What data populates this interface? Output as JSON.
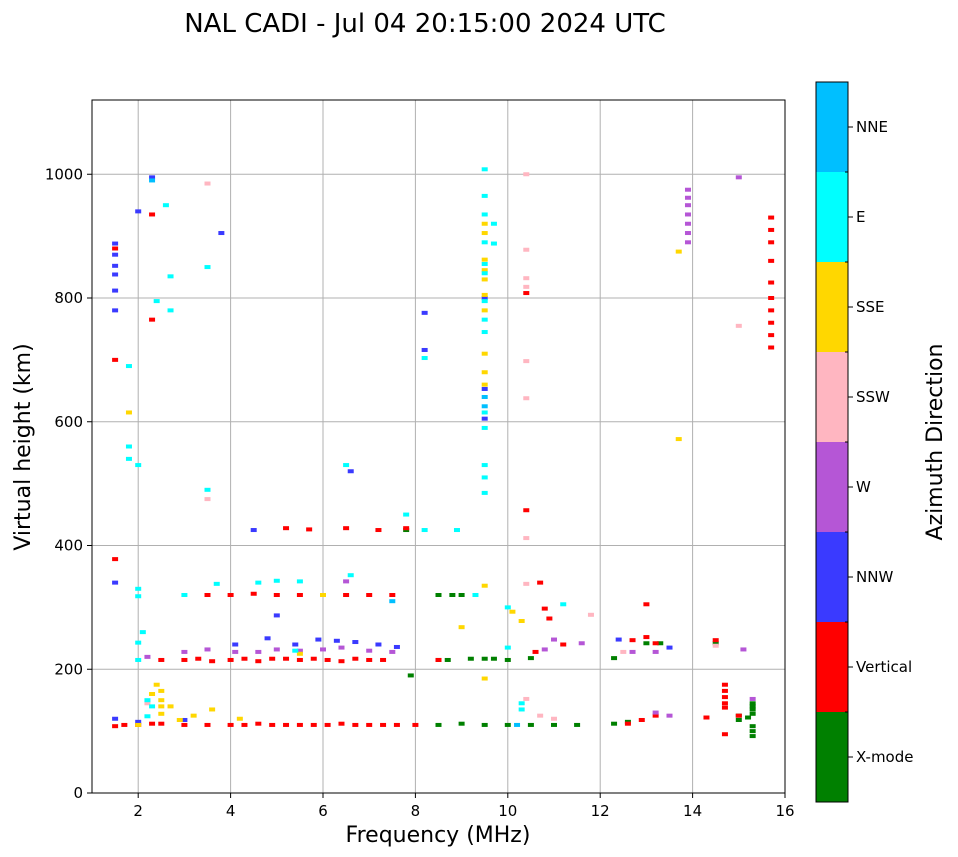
{
  "chart_data": {
    "type": "scatter",
    "title": "NAL CADI - Jul 04 20:15:00 2024 UTC",
    "xlabel": "Frequency (MHz)",
    "ylabel": "Virtual height (km)",
    "xlim": [
      1.0,
      16.0
    ],
    "ylim": [
      0,
      1120
    ],
    "xticks": [
      2,
      4,
      6,
      8,
      10,
      12,
      14,
      16
    ],
    "yticks": [
      0,
      200,
      400,
      600,
      800,
      1000
    ],
    "grid": true,
    "colorbar": {
      "label": "Azimuth Direction",
      "categories": [
        {
          "name": "X-mode",
          "color": "#008000"
        },
        {
          "name": "Vertical",
          "color": "#ff0000"
        },
        {
          "name": "NNW",
          "color": "#3a3aff"
        },
        {
          "name": "W",
          "color": "#b556d6"
        },
        {
          "name": "SSW",
          "color": "#ffb6c1"
        },
        {
          "name": "SSE",
          "color": "#ffd700"
        },
        {
          "name": "E",
          "color": "#00ffff"
        },
        {
          "name": "NNE",
          "color": "#00bfff"
        }
      ]
    },
    "series": [
      {
        "name": "X-mode",
        "color": "#008000",
        "points": [
          [
            8.5,
            110
          ],
          [
            9.0,
            112
          ],
          [
            9.5,
            110
          ],
          [
            10.0,
            110
          ],
          [
            10.5,
            110
          ],
          [
            11.0,
            110
          ],
          [
            11.5,
            110
          ],
          [
            12.3,
            112
          ],
          [
            12.6,
            115
          ],
          [
            15.2,
            122
          ],
          [
            15.3,
            128
          ],
          [
            15.3,
            135
          ],
          [
            15.3,
            140
          ],
          [
            15.3,
            145
          ],
          [
            15.3,
            108
          ],
          [
            15.3,
            100
          ],
          [
            15.3,
            92
          ],
          [
            8.5,
            215
          ],
          [
            8.7,
            215
          ],
          [
            9.2,
            217
          ],
          [
            9.5,
            217
          ],
          [
            9.7,
            217
          ],
          [
            10.0,
            215
          ],
          [
            10.5,
            218
          ],
          [
            12.3,
            218
          ],
          [
            13.0,
            242
          ],
          [
            13.3,
            242
          ],
          [
            14.5,
            242
          ],
          [
            8.5,
            320
          ],
          [
            8.8,
            320
          ],
          [
            9.0,
            320
          ],
          [
            7.8,
            425
          ],
          [
            7.9,
            190
          ],
          [
            15.0,
            125
          ],
          [
            15.0,
            118
          ]
        ]
      },
      {
        "name": "Vertical",
        "color": "#ff0000",
        "points": [
          [
            1.5,
            108
          ],
          [
            1.7,
            110
          ],
          [
            2.0,
            110
          ],
          [
            2.3,
            112
          ],
          [
            2.5,
            112
          ],
          [
            3.0,
            110
          ],
          [
            3.5,
            110
          ],
          [
            4.0,
            110
          ],
          [
            4.3,
            110
          ],
          [
            4.6,
            112
          ],
          [
            4.9,
            110
          ],
          [
            5.2,
            110
          ],
          [
            5.5,
            110
          ],
          [
            5.8,
            110
          ],
          [
            6.1,
            110
          ],
          [
            6.4,
            112
          ],
          [
            6.7,
            110
          ],
          [
            7.0,
            110
          ],
          [
            7.3,
            110
          ],
          [
            7.6,
            110
          ],
          [
            8.0,
            110
          ],
          [
            12.6,
            112
          ],
          [
            12.9,
            118
          ],
          [
            13.2,
            125
          ],
          [
            14.3,
            122
          ],
          [
            14.7,
            175
          ],
          [
            14.7,
            165
          ],
          [
            14.7,
            155
          ],
          [
            14.7,
            145
          ],
          [
            14.7,
            138
          ],
          [
            14.7,
            95
          ],
          [
            15.0,
            125
          ],
          [
            2.5,
            215
          ],
          [
            3.0,
            215
          ],
          [
            3.3,
            217
          ],
          [
            3.6,
            213
          ],
          [
            4.0,
            215
          ],
          [
            4.3,
            217
          ],
          [
            4.6,
            213
          ],
          [
            4.9,
            217
          ],
          [
            5.2,
            217
          ],
          [
            5.5,
            215
          ],
          [
            5.8,
            217
          ],
          [
            6.1,
            215
          ],
          [
            6.4,
            213
          ],
          [
            6.7,
            217
          ],
          [
            7.0,
            215
          ],
          [
            7.3,
            215
          ],
          [
            8.5,
            215
          ],
          [
            12.7,
            247
          ],
          [
            13.0,
            252
          ],
          [
            13.2,
            242
          ],
          [
            14.5,
            247
          ],
          [
            11.2,
            240
          ],
          [
            3.5,
            320
          ],
          [
            4.0,
            320
          ],
          [
            4.5,
            322
          ],
          [
            5.0,
            320
          ],
          [
            5.5,
            320
          ],
          [
            6.0,
            320
          ],
          [
            6.5,
            320
          ],
          [
            7.0,
            320
          ],
          [
            7.5,
            320
          ],
          [
            5.2,
            428
          ],
          [
            5.7,
            426
          ],
          [
            6.5,
            428
          ],
          [
            7.2,
            425
          ],
          [
            7.8,
            428
          ],
          [
            10.4,
            457
          ],
          [
            10.7,
            340
          ],
          [
            10.9,
            282
          ],
          [
            13.0,
            305
          ],
          [
            10.6,
            228
          ],
          [
            10.8,
            298
          ],
          [
            2.3,
            935
          ],
          [
            2.3,
            765
          ],
          [
            10.4,
            808
          ],
          [
            1.5,
            378
          ],
          [
            1.5,
            700
          ],
          [
            15.7,
            860
          ],
          [
            15.7,
            825
          ],
          [
            15.7,
            800
          ],
          [
            15.7,
            780
          ],
          [
            15.7,
            760
          ],
          [
            15.7,
            740
          ],
          [
            15.7,
            720
          ],
          [
            15.7,
            890
          ],
          [
            15.7,
            910
          ],
          [
            15.7,
            930
          ],
          [
            1.5,
            880
          ]
        ]
      },
      {
        "name": "NNW",
        "color": "#3a3aff",
        "points": [
          [
            1.5,
            120
          ],
          [
            2.0,
            115
          ],
          [
            3.0,
            118
          ],
          [
            4.1,
            240
          ],
          [
            4.8,
            250
          ],
          [
            5.4,
            240
          ],
          [
            5.9,
            248
          ],
          [
            6.3,
            246
          ],
          [
            6.7,
            244
          ],
          [
            7.2,
            240
          ],
          [
            7.6,
            236
          ],
          [
            1.5,
            888
          ],
          [
            1.5,
            870
          ],
          [
            1.5,
            852
          ],
          [
            1.5,
            838
          ],
          [
            1.5,
            812
          ],
          [
            1.5,
            780
          ],
          [
            1.5,
            340
          ],
          [
            2.0,
            940
          ],
          [
            2.3,
            995
          ],
          [
            3.8,
            905
          ],
          [
            8.2,
            776
          ],
          [
            8.2,
            716
          ],
          [
            9.5,
            653
          ],
          [
            9.5,
            605
          ],
          [
            4.5,
            425
          ],
          [
            6.6,
            520
          ],
          [
            12.4,
            248
          ],
          [
            13.5,
            235
          ],
          [
            5.0,
            287
          ],
          [
            9.5,
            800
          ]
        ]
      },
      {
        "name": "W",
        "color": "#b556d6",
        "points": [
          [
            2.2,
            220
          ],
          [
            3.0,
            228
          ],
          [
            3.5,
            232
          ],
          [
            4.1,
            228
          ],
          [
            4.6,
            228
          ],
          [
            5.0,
            232
          ],
          [
            5.5,
            230
          ],
          [
            6.0,
            232
          ],
          [
            6.4,
            235
          ],
          [
            7.0,
            230
          ],
          [
            7.5,
            228
          ],
          [
            13.5,
            125
          ],
          [
            13.2,
            130
          ],
          [
            12.7,
            228
          ],
          [
            13.2,
            228
          ],
          [
            15.1,
            232
          ],
          [
            15.3,
            152
          ],
          [
            11.0,
            248
          ],
          [
            10.8,
            232
          ],
          [
            11.6,
            242
          ],
          [
            13.9,
            975
          ],
          [
            13.9,
            962
          ],
          [
            13.9,
            950
          ],
          [
            13.9,
            935
          ],
          [
            13.9,
            920
          ],
          [
            13.9,
            905
          ],
          [
            13.9,
            890
          ],
          [
            15.0,
            995
          ],
          [
            6.5,
            342
          ]
        ]
      },
      {
        "name": "SSW",
        "color": "#ffb6c1",
        "points": [
          [
            10.4,
            1000
          ],
          [
            10.4,
            878
          ],
          [
            10.4,
            832
          ],
          [
            10.4,
            818
          ],
          [
            10.4,
            698
          ],
          [
            10.4,
            638
          ],
          [
            10.4,
            412
          ],
          [
            10.4,
            338
          ],
          [
            3.5,
            985
          ],
          [
            15.0,
            755
          ],
          [
            11.8,
            288
          ],
          [
            12.5,
            228
          ],
          [
            14.5,
            238
          ],
          [
            10.4,
            152
          ],
          [
            10.7,
            125
          ],
          [
            11.0,
            120
          ],
          [
            3.5,
            475
          ],
          [
            2.2,
            145
          ]
        ]
      },
      {
        "name": "SSE",
        "color": "#ffd700",
        "points": [
          [
            1.8,
            615
          ],
          [
            2.0,
            110
          ],
          [
            2.4,
            175
          ],
          [
            2.5,
            165
          ],
          [
            2.5,
            150
          ],
          [
            2.5,
            140
          ],
          [
            2.5,
            128
          ],
          [
            2.3,
            160
          ],
          [
            2.7,
            140
          ],
          [
            2.9,
            118
          ],
          [
            3.2,
            125
          ],
          [
            3.6,
            135
          ],
          [
            4.2,
            120
          ],
          [
            9.5,
            920
          ],
          [
            9.5,
            905
          ],
          [
            9.5,
            862
          ],
          [
            9.5,
            845
          ],
          [
            9.5,
            830
          ],
          [
            9.5,
            805
          ],
          [
            9.5,
            780
          ],
          [
            9.5,
            710
          ],
          [
            9.5,
            680
          ],
          [
            9.5,
            660
          ],
          [
            9.5,
            335
          ],
          [
            9.5,
            185
          ],
          [
            10.1,
            293
          ],
          [
            10.3,
            278
          ],
          [
            13.7,
            875
          ],
          [
            13.7,
            572
          ],
          [
            9.0,
            268
          ],
          [
            6.0,
            320
          ],
          [
            5.5,
            225
          ]
        ]
      },
      {
        "name": "E",
        "color": "#00ffff",
        "points": [
          [
            2.0,
            530
          ],
          [
            1.8,
            540
          ],
          [
            1.8,
            560
          ],
          [
            1.8,
            690
          ],
          [
            2.0,
            330
          ],
          [
            2.0,
            318
          ],
          [
            2.1,
            260
          ],
          [
            2.0,
            243
          ],
          [
            2.0,
            215
          ],
          [
            2.2,
            150
          ],
          [
            2.3,
            140
          ],
          [
            3.0,
            320
          ],
          [
            3.5,
            490
          ],
          [
            3.5,
            850
          ],
          [
            2.7,
            835
          ],
          [
            2.7,
            780
          ],
          [
            2.6,
            950
          ],
          [
            2.4,
            795
          ],
          [
            9.5,
            1008
          ],
          [
            9.5,
            965
          ],
          [
            9.5,
            935
          ],
          [
            9.5,
            890
          ],
          [
            9.5,
            855
          ],
          [
            9.5,
            840
          ],
          [
            9.5,
            795
          ],
          [
            9.5,
            765
          ],
          [
            9.5,
            745
          ],
          [
            9.5,
            615
          ],
          [
            9.5,
            590
          ],
          [
            9.5,
            530
          ],
          [
            9.5,
            510
          ],
          [
            9.5,
            485
          ],
          [
            9.3,
            320
          ],
          [
            9.7,
            920
          ],
          [
            9.7,
            888
          ],
          [
            10.0,
            300
          ],
          [
            10.0,
            235
          ],
          [
            10.3,
            145
          ],
          [
            10.3,
            135
          ],
          [
            11.2,
            305
          ],
          [
            4.6,
            340
          ],
          [
            5.0,
            343
          ],
          [
            5.5,
            342
          ],
          [
            6.6,
            352
          ],
          [
            7.8,
            450
          ],
          [
            8.2,
            425
          ],
          [
            8.9,
            425
          ],
          [
            6.5,
            530
          ],
          [
            8.2,
            703
          ],
          [
            3.7,
            338
          ],
          [
            5.4,
            230
          ],
          [
            2.2,
            124
          ]
        ]
      },
      {
        "name": "NNE",
        "color": "#00bfff",
        "points": [
          [
            9.5,
            640
          ],
          [
            9.5,
            625
          ],
          [
            2.3,
            990
          ],
          [
            7.5,
            310
          ],
          [
            10.2,
            110
          ]
        ]
      }
    ]
  }
}
